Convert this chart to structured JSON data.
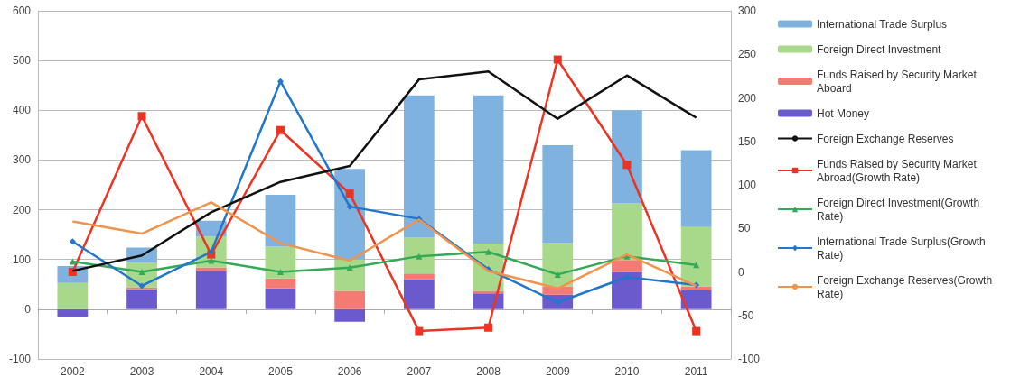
{
  "chart_data": {
    "type": "bar",
    "stacked": true,
    "categories": [
      "2002",
      "2003",
      "2004",
      "2005",
      "2006",
      "2007",
      "2008",
      "2009",
      "2010",
      "2011"
    ],
    "series": [
      {
        "name": "Hot Money",
        "color": "#6a5acd",
        "values": [
          -15,
          40,
          77,
          42,
          -25,
          60,
          32,
          29,
          75,
          38
        ]
      },
      {
        "name": "Funds Raised by Security Market Aboard",
        "color": "#f47a74",
        "values": [
          0,
          4,
          7,
          20,
          37,
          12,
          5,
          17,
          24,
          8
        ]
      },
      {
        "name": "Foreign Direct Investment",
        "color": "#a8d88a",
        "values": [
          53,
          50,
          62,
          64,
          63,
          73,
          95,
          87,
          114,
          119
        ]
      },
      {
        "name": "International Trade Surplus",
        "color": "#7fb2de",
        "values": [
          34,
          30,
          32,
          104,
          182,
          285,
          298,
          197,
          187,
          155
        ]
      },
      {
        "name": "Foreign Exchange Reserves",
        "type": "line",
        "color": "#111111",
        "marker": "none",
        "values": [
          77,
          108,
          195,
          256,
          288,
          462,
          478,
          383,
          470,
          385
        ]
      },
      {
        "name": "Funds Raised by Security Market Abroad(Growth Rate)",
        "type": "line",
        "axis": "y2",
        "color": "#ee3322",
        "marker": "square",
        "values": [
          0,
          179,
          20,
          163,
          90,
          -68,
          -64,
          244,
          123,
          -68
        ]
      },
      {
        "name": "Foreign Direct Investment(Growth Rate)",
        "type": "line",
        "axis": "y2",
        "color": "#33aa55",
        "marker": "triangle",
        "values": [
          12,
          0,
          13,
          0,
          5,
          18,
          23,
          -3,
          18,
          8
        ]
      },
      {
        "name": "International Trade Surplus(Growth Rate)",
        "type": "line",
        "axis": "y2",
        "color": "#2277cc",
        "marker": "diamond",
        "values": [
          35,
          -16,
          23,
          219,
          75,
          61,
          3,
          -35,
          -6,
          -15
        ]
      },
      {
        "name": "Foreign Exchange Reserves(Growth Rate)",
        "type": "line",
        "axis": "y2",
        "color": "#f0944d",
        "marker": "none",
        "values": [
          58,
          44,
          80,
          33,
          13,
          60,
          1,
          -19,
          20,
          -16
        ]
      }
    ],
    "ylim": [
      -100,
      600
    ],
    "yticks": [
      -100,
      0,
      100,
      200,
      300,
      400,
      500,
      600
    ],
    "y2lim": [
      -100,
      300
    ],
    "y2ticks": [
      -100,
      -50,
      0,
      50,
      100,
      150,
      200,
      250,
      300
    ],
    "grid": "y",
    "legend": "right"
  }
}
